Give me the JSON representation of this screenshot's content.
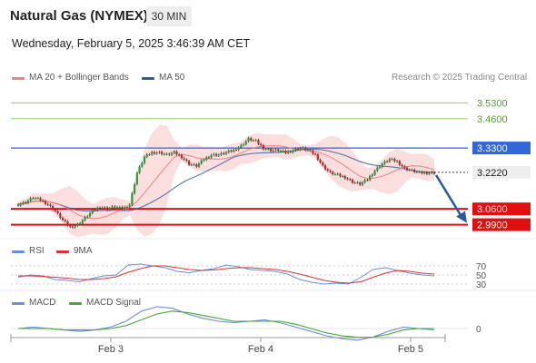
{
  "header": {
    "title": "Natural Gas (NYMEX)",
    "timeframe": "30 MIN",
    "datetime": "Wednesday, February 5, 2025 3:46:39 AM CET"
  },
  "legend": {
    "ma20_label": "MA 20 + Bollinger Bands",
    "ma50_label": "MA 50",
    "copyright": "Research © 2025 Trading Central",
    "rsi_label": "RSI",
    "rsi_ma_label": "9MA",
    "macd_label": "MACD",
    "macd_signal_label": "MACD Signal"
  },
  "colors": {
    "ma20": "#f08080",
    "ma50": "#2c5aa0",
    "bollinger_fill": "#f7c4c4",
    "resistance_green": "#8fd06a",
    "pivot_blue": "#3366dd",
    "support_red": "#e01010",
    "current_gray": "#444444",
    "rsi": "#6a8ee0",
    "rsi_ma": "#e03030",
    "macd": "#6a8ee0",
    "macd_signal": "#44aa33",
    "candle_up": "#2a9a3a",
    "candle_down": "#cc2222"
  },
  "chart_data": [
    {
      "type": "candlestick",
      "instrument": "Natural Gas (NYMEX)",
      "timeframe": "30 MIN",
      "x_ticks": [
        "Feb 3",
        "Feb 4",
        "Feb 5"
      ],
      "ylim": [
        2.94,
        3.6
      ],
      "price_path": [
        3.08,
        3.09,
        3.11,
        3.1,
        3.08,
        3.05,
        3.01,
        2.98,
        2.99,
        3.02,
        3.05,
        3.07,
        3.06,
        3.07,
        3.06,
        3.08,
        3.22,
        3.29,
        3.31,
        3.31,
        3.3,
        3.31,
        3.29,
        3.26,
        3.25,
        3.28,
        3.3,
        3.3,
        3.31,
        3.32,
        3.34,
        3.37,
        3.36,
        3.33,
        3.32,
        3.32,
        3.31,
        3.32,
        3.33,
        3.32,
        3.3,
        3.25,
        3.22,
        3.21,
        3.2,
        3.18,
        3.17,
        3.19,
        3.23,
        3.26,
        3.28,
        3.27,
        3.24,
        3.23,
        3.22,
        3.22,
        3.22
      ],
      "levels": [
        {
          "label": "3.5300",
          "value": 3.53,
          "kind": "resistance"
        },
        {
          "label": "3.4600",
          "value": 3.46,
          "kind": "resistance"
        },
        {
          "label": "3.3300",
          "value": 3.33,
          "kind": "pivot"
        },
        {
          "label": "3.2220",
          "value": 3.222,
          "kind": "last"
        },
        {
          "label": "3.0600",
          "value": 3.06,
          "kind": "support"
        },
        {
          "label": "2.9900",
          "value": 2.99,
          "kind": "support"
        }
      ],
      "projection": {
        "from": 3.222,
        "to": 2.99,
        "direction": "down"
      }
    },
    {
      "type": "line",
      "name": "RSI",
      "y_ticks": [
        "70",
        "50",
        "30"
      ],
      "ylim": [
        20,
        80
      ],
      "series": [
        {
          "name": "RSI",
          "values": [
            45,
            50,
            48,
            40,
            38,
            35,
            42,
            48,
            50,
            72,
            74,
            70,
            66,
            58,
            55,
            60,
            64,
            72,
            68,
            62,
            60,
            58,
            52,
            40,
            34,
            30,
            32,
            30,
            45,
            62,
            66,
            60,
            54,
            50,
            48
          ]
        },
        {
          "name": "9MA",
          "values": [
            48,
            48,
            47,
            45,
            43,
            40,
            40,
            42,
            46,
            56,
            64,
            70,
            70,
            66,
            62,
            60,
            61,
            64,
            66,
            66,
            64,
            62,
            58,
            52,
            45,
            38,
            34,
            32,
            35,
            45,
            54,
            60,
            58,
            54,
            52
          ]
        }
      ]
    },
    {
      "type": "line",
      "name": "MACD",
      "y_ticks": [
        "0"
      ],
      "series": [
        {
          "name": "MACD",
          "values": [
            0.0,
            0.01,
            0.0,
            -0.01,
            -0.02,
            -0.01,
            0.01,
            0.05,
            0.12,
            0.15,
            0.14,
            0.1,
            0.07,
            0.05,
            0.04,
            0.05,
            0.06,
            0.04,
            0.01,
            -0.02,
            -0.05,
            -0.07,
            -0.08,
            -0.06,
            -0.02,
            0.01,
            0.0,
            -0.01
          ]
        },
        {
          "name": "MACD Signal",
          "values": [
            0.0,
            0.0,
            0.0,
            -0.01,
            -0.01,
            -0.01,
            0.0,
            0.02,
            0.06,
            0.1,
            0.12,
            0.11,
            0.09,
            0.07,
            0.05,
            0.05,
            0.05,
            0.05,
            0.03,
            0.0,
            -0.03,
            -0.05,
            -0.06,
            -0.06,
            -0.04,
            -0.01,
            0.0,
            0.0
          ]
        }
      ]
    }
  ]
}
